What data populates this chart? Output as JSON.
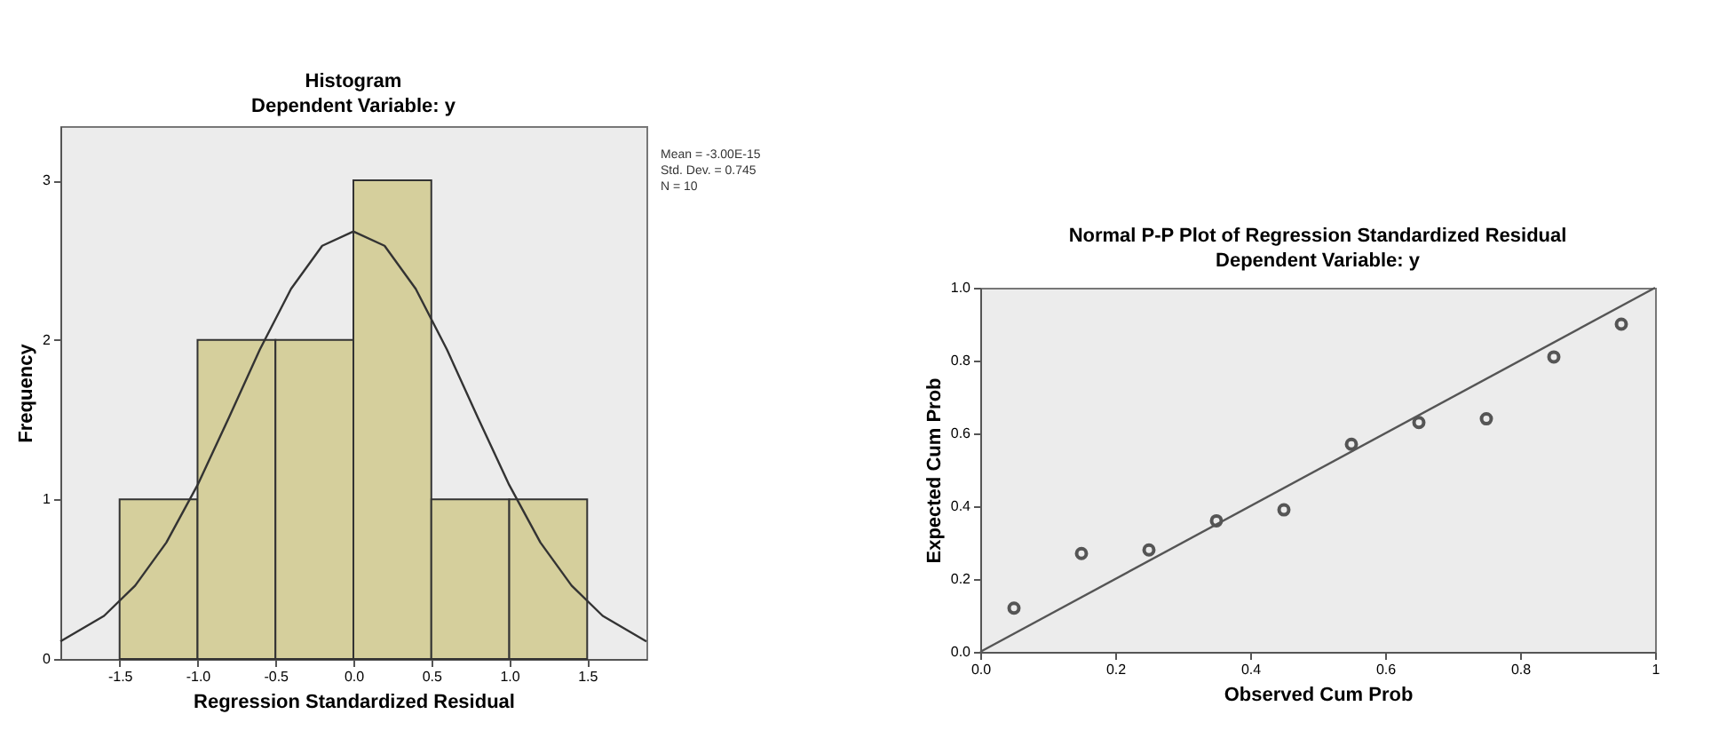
{
  "chart_data": [
    {
      "type": "histogram",
      "title": "Histogram",
      "subtitle": "Dependent Variable: y",
      "xlabel": "Regression Standardized Residual",
      "ylabel": "Frequency",
      "bins": [
        -1.5,
        -1.0,
        -0.5,
        0.0,
        0.5,
        1.0,
        1.5
      ],
      "values": [
        1,
        2,
        2,
        3,
        1,
        1
      ],
      "color": "#d5cf9c",
      "series": [
        {
          "type": "line",
          "color": "#333333",
          "x": [
            -1.88,
            -1.6,
            -1.4,
            -1.2,
            -1.0,
            -0.8,
            -0.6,
            -0.4,
            -0.2,
            0.0,
            0.2,
            0.4,
            0.6,
            0.8,
            1.0,
            1.2,
            1.4,
            1.6,
            1.88
          ],
          "values": [
            0.11,
            0.27,
            0.46,
            0.73,
            1.09,
            1.51,
            1.94,
            2.32,
            2.59,
            2.68,
            2.59,
            2.32,
            1.94,
            1.51,
            1.09,
            0.73,
            0.46,
            0.27,
            0.11
          ]
        }
      ],
      "xlim": [
        -1.88,
        1.88
      ],
      "xticks": [
        -1.5,
        {
          "value": -1.0,
          "label": "-1.0"
        },
        -0.5,
        {
          "value": 0.0,
          "label": "0.0"
        },
        0.5,
        {
          "value": 1.0,
          "label": "1.0"
        },
        1.5
      ],
      "ylim": [
        0,
        3.34
      ],
      "yticks": [
        0,
        1,
        2,
        3
      ],
      "grid": false,
      "annotations": [
        "Mean = -3.00E-15",
        "Std. Dev. = 0.745",
        "N = 10"
      ]
    },
    {
      "type": "scatter",
      "title": "Normal P-P Plot of Regression Standardized Residual",
      "subtitle": "Dependent Variable: y",
      "xlabel": "Observed Cum Prob",
      "ylabel": "Expected Cum Prob",
      "series": [
        {
          "type": "scatter",
          "color": "#555555",
          "marker": "circle",
          "x": [
            0.05,
            0.15,
            0.25,
            0.35,
            0.45,
            0.55,
            0.65,
            0.75,
            0.85,
            0.95
          ],
          "values": [
            0.12,
            0.27,
            0.28,
            0.36,
            0.39,
            0.57,
            0.63,
            0.64,
            0.81,
            0.9
          ]
        },
        {
          "type": "line",
          "color": "#555555",
          "x": [
            0,
            1
          ],
          "values": [
            0,
            1
          ]
        }
      ],
      "xlim": [
        0,
        1
      ],
      "xticks": [
        {
          "value": 0,
          "label": "0.0"
        },
        0.2,
        0.4,
        0.6,
        0.8,
        1
      ],
      "ylim": [
        0,
        1
      ],
      "yticks": [
        {
          "value": 0,
          "label": "0.0"
        },
        0.2,
        0.4,
        0.6,
        0.8,
        {
          "value": 1,
          "label": "1.0"
        }
      ],
      "grid": false
    }
  ]
}
